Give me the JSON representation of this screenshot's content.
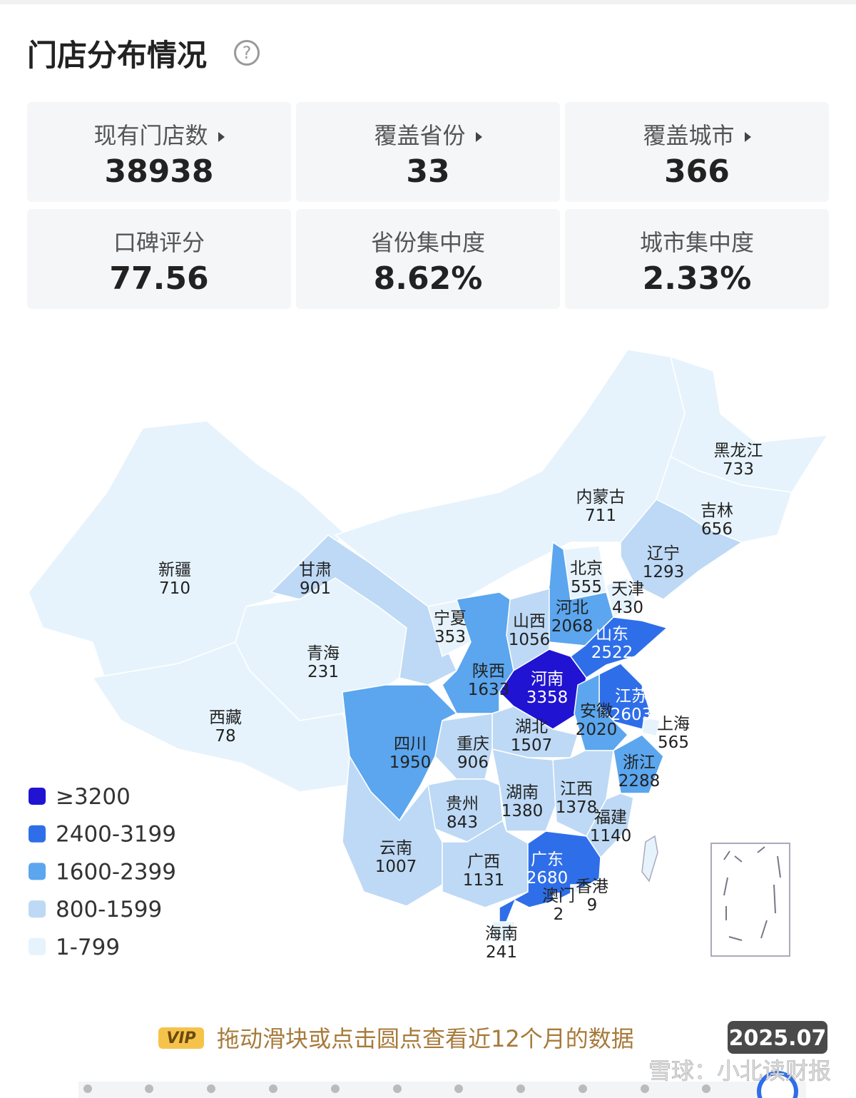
{
  "header": {
    "title": "门店分布情况"
  },
  "stats": [
    {
      "label": "现有门店数",
      "value": "38938"
    },
    {
      "label": "覆盖省份",
      "value": "33"
    },
    {
      "label": "覆盖城市",
      "value": "366"
    },
    {
      "label": "口碑评分",
      "value": "77.56"
    },
    {
      "label": "省份集中度",
      "value": "8.62%"
    },
    {
      "label": "城市集中度",
      "value": "2.33%"
    }
  ],
  "map": {
    "type": "choropleth",
    "legend": [
      {
        "label": "≥3200",
        "min": 3200,
        "color": "#2113d2"
      },
      {
        "label": "2400-3199",
        "min": 2400,
        "color": "#2f6ee9"
      },
      {
        "label": "1600-2399",
        "min": 1600,
        "color": "#5ba6ee"
      },
      {
        "label": "800-1599",
        "min": 800,
        "color": "#bdd9f5"
      },
      {
        "label": "1-799",
        "min": 1,
        "color": "#e6f3fc"
      }
    ],
    "regions": [
      {
        "name": "新疆",
        "value": 710
      },
      {
        "name": "西藏",
        "value": 78
      },
      {
        "name": "青海",
        "value": 231
      },
      {
        "name": "甘肃",
        "value": 901
      },
      {
        "name": "内蒙古",
        "value": 711
      },
      {
        "name": "黑龙江",
        "value": 733
      },
      {
        "name": "吉林",
        "value": 656
      },
      {
        "name": "辽宁",
        "value": 1293
      },
      {
        "name": "北京",
        "value": 555
      },
      {
        "name": "天津",
        "value": 430
      },
      {
        "name": "河北",
        "value": 2068
      },
      {
        "name": "山西",
        "value": 1056
      },
      {
        "name": "宁夏",
        "value": 353
      },
      {
        "name": "陕西",
        "value": 1633
      },
      {
        "name": "河南",
        "value": 3358
      },
      {
        "name": "山东",
        "value": 2522
      },
      {
        "name": "江苏",
        "value": 2603
      },
      {
        "name": "安徽",
        "value": 2020
      },
      {
        "name": "上海",
        "value": 565
      },
      {
        "name": "湖北",
        "value": 1507
      },
      {
        "name": "四川",
        "value": 1950
      },
      {
        "name": "重庆",
        "value": 906
      },
      {
        "name": "浙江",
        "value": 2288
      },
      {
        "name": "湖南",
        "value": 1380
      },
      {
        "name": "江西",
        "value": 1378
      },
      {
        "name": "贵州",
        "value": 843
      },
      {
        "name": "福建",
        "value": 1140
      },
      {
        "name": "云南",
        "value": 1007
      },
      {
        "name": "广西",
        "value": 1131
      },
      {
        "name": "广东",
        "value": 2680
      },
      {
        "name": "澳门",
        "value": 2
      },
      {
        "name": "香港",
        "value": 9
      },
      {
        "name": "海南",
        "value": 241
      }
    ]
  },
  "footer": {
    "badge": "VIP",
    "hint": "拖动滑块或点击圆点查看近12个月的数据",
    "date": "2025.07",
    "watermark": "雪球：小北读财报"
  }
}
